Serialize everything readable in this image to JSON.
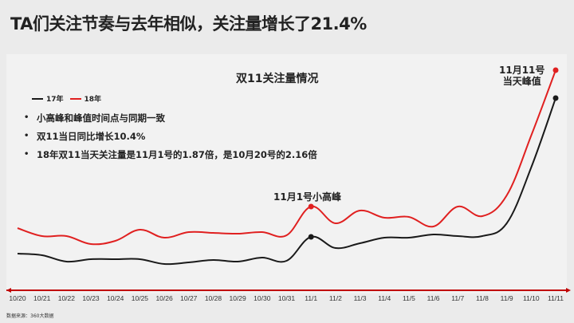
{
  "title": "TA们关注节奏与去年相似，关注量增长了21.4%",
  "source": "数据来源：360大数据",
  "chart_data": {
    "type": "line",
    "title": "双11关注量情况",
    "xlabel": "",
    "ylabel": "",
    "grid": false,
    "legend_position": "top-left",
    "categories": [
      "10/20",
      "10/21",
      "10/22",
      "10/23",
      "10/24",
      "10/25",
      "10/26",
      "10/27",
      "10/28",
      "10/29",
      "10/30",
      "10/31",
      "11/1",
      "11/2",
      "11/3",
      "11/4",
      "11/5",
      "11/6",
      "11/7",
      "11/8",
      "11/9",
      "11/10",
      "11/11"
    ],
    "series": [
      {
        "name": "17年",
        "color": "#1a1a1a",
        "values": [
          318,
          320,
          328,
          325,
          325,
          325,
          331,
          329,
          326,
          328,
          323,
          327,
          297,
          311,
          305,
          298,
          298,
          294,
          296,
          296,
          280,
          210,
          123
        ]
      },
      {
        "name": "18年",
        "color": "#e02020",
        "values": [
          286,
          296,
          296,
          306,
          302,
          288,
          298,
          291,
          292,
          293,
          291,
          295,
          259,
          280,
          264,
          273,
          272,
          284,
          259,
          271,
          245,
          170,
          88
        ]
      }
    ],
    "values_note": "values are pixel y-positions (lower = higher attention), relative scale only",
    "annotations": [
      {
        "text": "11月1号小高峰",
        "x": "11/1"
      },
      {
        "text": "11月11号\n当天峰值",
        "x": "11/11"
      }
    ],
    "bullets": [
      "小高峰和峰值时间点与同期一致",
      "双11当日同比增长10.4%",
      "18年双11当天关注量是11月1号的1.87倍，是10月20号的2.16倍"
    ]
  },
  "legend": [
    {
      "label": "17年",
      "color": "#1a1a1a"
    },
    {
      "label": "18年",
      "color": "#e02020"
    }
  ],
  "annotation_small_peak": "11月1号小高峰",
  "annotation_peak_line1": "11月11号",
  "annotation_peak_line2": "当天峰值",
  "axis_color": "#c00000"
}
